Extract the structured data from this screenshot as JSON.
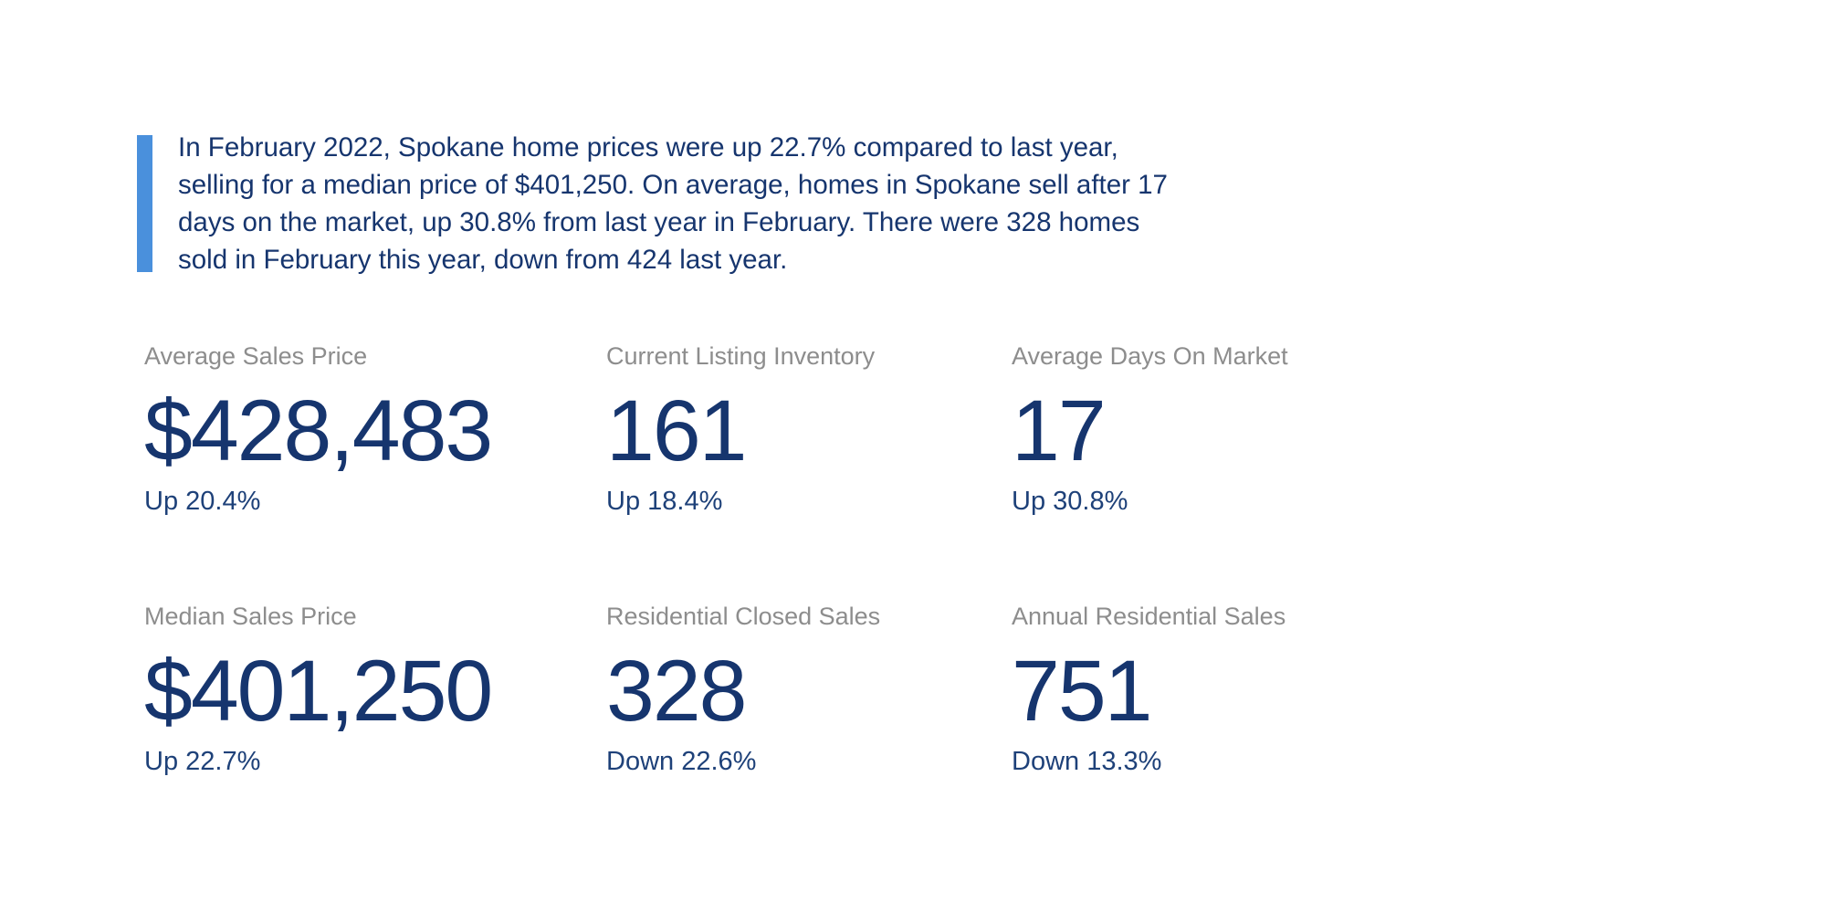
{
  "colors": {
    "background": "#ffffff",
    "accent_bar": "#4a90dc",
    "navy": "#16356e",
    "change_navy": "#1e4179",
    "label_gray": "#8d8d8d"
  },
  "summary": {
    "lines": [
      "In February 2022, Spokane home prices were up 22.7% compared to last year,",
      "selling for a median price of $401,250. On average, homes in Spokane sell after 17",
      "days on the market, up 30.8% from last year in February. There were 328 homes",
      "sold in February this year, down from 424 last year."
    ]
  },
  "stats": [
    {
      "label": "Average Sales Price",
      "value": "$428,483",
      "change": "Up 20.4%"
    },
    {
      "label": "Current Listing Inventory",
      "value": "161",
      "change": "Up 18.4%"
    },
    {
      "label": "Average Days On Market",
      "value": "17",
      "change": "Up 30.8%"
    },
    {
      "label": "Median Sales Price",
      "value": "$401,250",
      "change": "Up 22.7%"
    },
    {
      "label": "Residential Closed Sales",
      "value": "328",
      "change": "Down 22.6%"
    },
    {
      "label": "Annual Residential Sales",
      "value": "751",
      "change": "Down 13.3%"
    }
  ]
}
